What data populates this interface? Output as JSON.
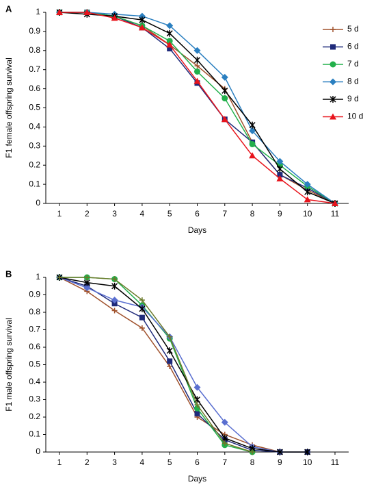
{
  "chart_data": [
    {
      "type": "line",
      "panel": "A",
      "xlabel": "Days",
      "ylabel": "F1 female offspring survival",
      "x": [
        1,
        2,
        3,
        4,
        5,
        6,
        7,
        8,
        9,
        10,
        11
      ],
      "xlim": [
        1,
        11
      ],
      "xticks": [
        1,
        2,
        3,
        4,
        5,
        6,
        7,
        8,
        9,
        10,
        11
      ],
      "ylim": [
        0,
        1
      ],
      "yticks": [
        0,
        0.1,
        0.2,
        0.3,
        0.4,
        0.5,
        0.6,
        0.7,
        0.8,
        0.9,
        1
      ],
      "legend": "right",
      "series": [
        {
          "name": "5 d",
          "color": "#a0522d",
          "marker": "plus",
          "values": [
            1,
            1,
            0.98,
            0.93,
            0.83,
            0.72,
            0.6,
            0.32,
            0.15,
            0.07,
            0
          ]
        },
        {
          "name": "6 d",
          "color": "#1f2a7a",
          "marker": "square",
          "values": [
            1,
            1,
            0.98,
            0.92,
            0.81,
            0.63,
            0.44,
            0.32,
            0.15,
            0.08,
            0
          ]
        },
        {
          "name": "7 d",
          "color": "#22b04b",
          "marker": "circle",
          "values": [
            1,
            1,
            0.98,
            0.93,
            0.85,
            0.69,
            0.55,
            0.31,
            0.2,
            0.09,
            0
          ]
        },
        {
          "name": "8 d",
          "color": "#2a7fc0",
          "marker": "diamond",
          "values": [
            1,
            1,
            0.99,
            0.98,
            0.93,
            0.8,
            0.66,
            0.38,
            0.22,
            0.1,
            0
          ]
        },
        {
          "name": "9 d",
          "color": "#000000",
          "marker": "star",
          "values": [
            1,
            0.99,
            0.98,
            0.96,
            0.89,
            0.75,
            0.59,
            0.41,
            0.18,
            0.06,
            0
          ]
        },
        {
          "name": "10 d",
          "color": "#e8141c",
          "marker": "triangle",
          "values": [
            1,
            1,
            0.97,
            0.92,
            0.83,
            0.64,
            0.44,
            0.25,
            0.13,
            0.02,
            0
          ]
        }
      ]
    },
    {
      "type": "line",
      "panel": "B",
      "xlabel": "Days",
      "ylabel": "F1 male offspring survival",
      "x": [
        1,
        2,
        3,
        4,
        5,
        6,
        7,
        8,
        9,
        10,
        11
      ],
      "xlim": [
        1,
        11
      ],
      "xticks": [
        1,
        2,
        3,
        4,
        5,
        6,
        7,
        8,
        9,
        10,
        11
      ],
      "ylim": [
        0,
        1
      ],
      "yticks": [
        0,
        0.1,
        0.2,
        0.3,
        0.4,
        0.5,
        0.6,
        0.7,
        0.8,
        0.9,
        1
      ],
      "series": [
        {
          "color": "#a0522d",
          "marker": "plus",
          "values": [
            1,
            0.92,
            0.81,
            0.71,
            0.49,
            0.2,
            0.1,
            0.04,
            0,
            null,
            null
          ]
        },
        {
          "color": "#1f2a7a",
          "marker": "square",
          "values": [
            1,
            0.95,
            0.85,
            0.77,
            0.52,
            0.22,
            0.07,
            0.01,
            0,
            0,
            null
          ]
        },
        {
          "color": "#22b04b",
          "marker": "circle",
          "values": [
            1,
            1,
            0.99,
            0.84,
            0.65,
            0.25,
            0.04,
            0,
            null,
            null,
            null
          ]
        },
        {
          "color": "#5a6fd0",
          "marker": "diamond",
          "values": [
            1,
            0.94,
            0.87,
            0.83,
            0.66,
            0.37,
            0.17,
            0.03,
            0,
            null,
            null
          ]
        },
        {
          "color": "#000000",
          "marker": "star",
          "values": [
            1,
            0.97,
            0.95,
            0.82,
            0.58,
            0.3,
            0.08,
            0.02,
            0,
            0,
            null
          ]
        },
        {
          "color": "#6b7a2a",
          "marker": "plus",
          "values": [
            1,
            1,
            0.99,
            0.87,
            0.66,
            0.27,
            0.05,
            0,
            null,
            null,
            null
          ]
        }
      ]
    }
  ]
}
